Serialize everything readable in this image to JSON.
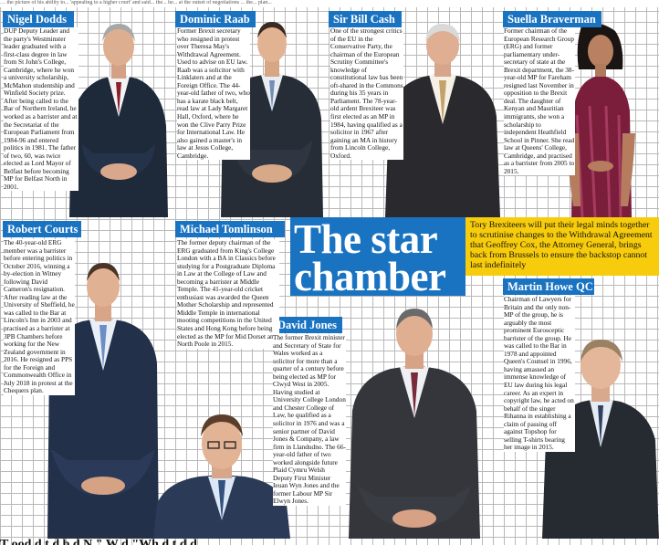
{
  "top_strip": "… the picture of his ability to... 'appealing to a higher court' and said... the... he... at the outset of negotiations ... the... plan...",
  "headline": {
    "title": "The star chamber",
    "standfirst": "Tory Brexiteers will put their legal minds together to scrutinise changes to the Withdrawal Agreement that Geoffrey Cox, the Attorney General, brings back from Brussels to ensure the backstop cannot last indefinitely"
  },
  "profiles": {
    "dodds": {
      "name": "Nigel Dodds",
      "bio": "DUP Deputy Leader and the party's Westminster leader graduated with a first-class degree in law from St John's College, Cambridge, where he won a university scholarship, McMahon studentship and Winfield Society prize. After being called to the Bar of Northern Ireland, he worked as a barrister and at the Secretariat of the European Parliament from 1984-96 and entered politics in 1981. The father of two, 60, was twice elected as Lord Mayor of Belfast before becoming MP for Belfast North in 2001."
    },
    "raab": {
      "name": "Dominic Raab",
      "bio": "Former Brexit secretary who resigned in protest over Theresa May's Withdrawal Agreement. Used to advise on EU law. Raab was a solicitor with Linklaters and at the Foreign Office. The 44-year-old father of two, who has a karate black belt, read law at Lady Margaret Hall, Oxford, where he won the Clive Parry Prize for International Law. He also gained a master's in law at Jesus College, Cambridge."
    },
    "cash": {
      "name": "Sir Bill Cash",
      "bio": "One of the strongest critics of the EU in the Conservative Party, the chairman of the European Scrutiny Committee's knowledge of constitutional law has been oft-shared in the Commons during his 35 years in Parliament. The 78-year-old ardent Brexiteer was first elected as an MP in 1984, having qualified as a solicitor in 1967 after gaining an MA in history from Lincoln College, Oxford."
    },
    "braverman": {
      "name": "Suella Braverman",
      "bio": "Former chairman of the European Research Group (ERG) and former parliamentary under-secretary of state at the Brexit department, the 38-year-old MP for Fareham resigned last November in opposition to the Brexit deal. The daughter of Kenyan and Mauritian immigrants, she won a scholarship to independent Heathfield School in Pinner. She read law at Queens' College, Cambridge, and practised as a barrister from 2005 to 2015."
    },
    "courts": {
      "name": "Robert Courts",
      "bio": "The 40-year-old ERG member was a barrister before entering politics in October 2016, winning a by-election in Witney following David Cameron's resignation. After reading law at the University of Sheffield, he was called to the Bar at Lincoln's Inn in 2003 and practised as a barrister at 3PB Chambers before working for the New Zealand government in 2016. He resigned as PPS for the Foreign and Commonwealth Office in July 2018 in protest at the Chequers plan."
    },
    "tomlinson": {
      "name": "Michael Tomlinson",
      "bio": "The former deputy chairman of the ERG graduated from King's College London with a BA in Classics before studying for a Postgraduate Diploma in Law at the College of Law and becoming a barrister at Middle Temple. The 41-year-old cricket enthusiast was awarded the Queen Mother Scholarship and represented Middle Temple in international mooting competitions in the United States and Hong Kong before being elected as the MP for Mid Dorset and North Poole in 2015."
    },
    "jones": {
      "name": "David Jones",
      "bio": "The former Brexit minister and Secretary of State for Wales worked as a solicitor for more than a quarter of a century before being elected as MP for Clwyd West in 2005. Having studied at University College London and Chester College of Law, he qualified as a solicitor in 1976 and was a senior partner of David Jones & Company, a law firm in Llandudno. The 66-year-old father of two worked alongside future Plaid Cymru Welsh Deputy First Minister Ieuan Wyn Jones and the former Labour MP Sir Elwyn Jones."
    },
    "howe": {
      "name": "Martin Howe QC",
      "bio": "Chairman of Lawyers for Britain and the only non-MP of the group, he is arguably the most prominent Eurosceptic barrister of the group. He was called to the Bar in 1978 and appointed Queen's Counsel in 1996, having amassed an immense knowledge of EU law during his legal career. As an expert in copyright law, he acted on behalf of the singer Rihanna in establishing a claim of passing off against Topshop for selling T-shirts bearing her image in 2015."
    }
  },
  "bottom_strip": "T    ood    d    t d b    d N    \" W    d    \"Wh    d    t d    d",
  "colors": {
    "accent_blue": "#1a73c1",
    "standfirst_yellow": "#f7cc0c",
    "grid": "#b9b9b9"
  }
}
